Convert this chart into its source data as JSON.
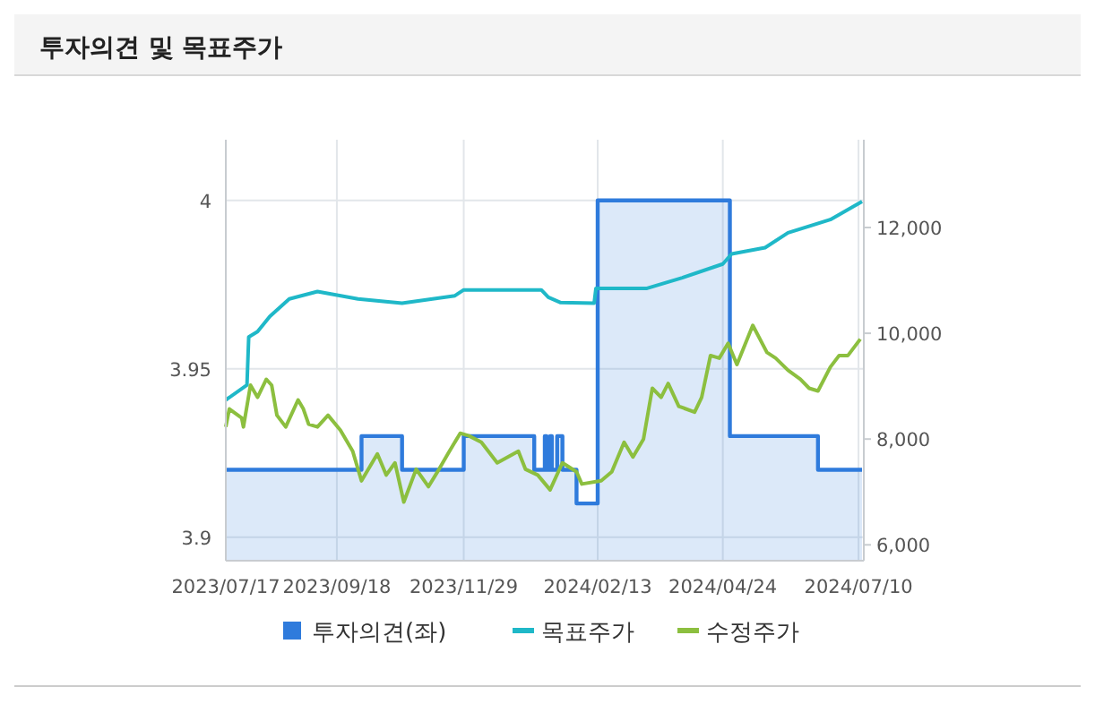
{
  "chart_data": {
    "type": "line",
    "title": "투자의견 및 목표주가",
    "xlim": [
      "2023-07-17",
      "2024-07-13"
    ],
    "xticks": [
      {
        "value": "2023-07-17",
        "label": "2023/07/17"
      },
      {
        "value": "2023-09-18",
        "label": "2023/09/18"
      },
      {
        "value": "2023-11-29",
        "label": "2023/11/29"
      },
      {
        "value": "2024-02-13",
        "label": "2024/02/13"
      },
      {
        "value": "2024-04-24",
        "label": "2024/04/24"
      },
      {
        "value": "2024-07-10",
        "label": "2024/07/10"
      }
    ],
    "ylim": [
      3.893,
      4.018
    ],
    "yticks": [
      3.9,
      3.95,
      4
    ],
    "y2lim": [
      5700,
      13660
    ],
    "y2ticks": [
      {
        "value": 6000,
        "label": "6,000"
      },
      {
        "value": 8000,
        "label": "8,000"
      },
      {
        "value": 10000,
        "label": "10,000"
      },
      {
        "value": 12000,
        "label": "12,000"
      }
    ],
    "grid": true,
    "legend": "bottom",
    "series": [
      {
        "name": "투자의견(좌)",
        "type": "area",
        "color": "#2f7bdc",
        "x": [
          "2023-07-17",
          "2023-10-02",
          "2023-10-02",
          "2023-10-25",
          "2023-10-25",
          "2023-11-29",
          "2023-11-29",
          "2024-01-08",
          "2024-01-08",
          "2024-01-14",
          "2024-01-14",
          "2024-01-15",
          "2024-01-15",
          "2024-01-17",
          "2024-01-17",
          "2024-01-18",
          "2024-01-18",
          "2024-01-21",
          "2024-01-21",
          "2024-01-24",
          "2024-01-24",
          "2024-02-01",
          "2024-02-01",
          "2024-02-13",
          "2024-02-13",
          "2024-04-28",
          "2024-04-28",
          "2024-06-17",
          "2024-06-17",
          "2024-07-12"
        ],
        "values": [
          3.92,
          3.92,
          3.93,
          3.93,
          3.92,
          3.92,
          3.93,
          3.93,
          3.92,
          3.92,
          3.93,
          3.93,
          3.92,
          3.92,
          3.93,
          3.93,
          3.92,
          3.92,
          3.93,
          3.93,
          3.92,
          3.92,
          3.91,
          3.91,
          4,
          4,
          3.93,
          3.93,
          3.92,
          3.92
        ]
      },
      {
        "name": "목표주가",
        "axis": "y2",
        "color": "#1fb8c8",
        "x": [
          "2023-07-17",
          "2023-07-29",
          "2023-07-30",
          "2023-08-04",
          "2023-08-11",
          "2023-08-22",
          "2023-09-07",
          "2023-09-30",
          "2023-10-25",
          "2023-11-24",
          "2023-11-29",
          "2023-12-31",
          "2024-01-12",
          "2024-01-16",
          "2024-01-23",
          "2024-02-11",
          "2024-02-12",
          "2024-03-12",
          "2024-04-01",
          "2024-04-24",
          "2024-04-29",
          "2024-05-18",
          "2024-05-31",
          "2024-06-24",
          "2024-07-12"
        ],
        "values": [
          8740,
          9020,
          9930,
          10030,
          10320,
          10650,
          10790,
          10650,
          10570,
          10710,
          10820,
          10820,
          10820,
          10680,
          10580,
          10570,
          10850,
          10850,
          11050,
          11310,
          11500,
          11620,
          11900,
          12150,
          12490
        ]
      },
      {
        "name": "수정주가",
        "axis": "y2",
        "color": "#8cbf3f",
        "x": [
          "2023-07-17",
          "2023-07-19",
          "2023-07-26",
          "2023-07-27",
          "2023-07-31",
          "2023-08-04",
          "2023-08-09",
          "2023-08-12",
          "2023-08-15",
          "2023-08-20",
          "2023-08-27",
          "2023-08-30",
          "2023-09-02",
          "2023-09-07",
          "2023-09-13",
          "2023-09-20",
          "2023-09-27",
          "2023-10-02",
          "2023-10-11",
          "2023-10-16",
          "2023-10-21",
          "2023-10-26",
          "2023-11-02",
          "2023-11-09",
          "2023-11-15",
          "2023-11-20",
          "2023-11-27",
          "2023-12-02",
          "2023-12-09",
          "2023-12-18",
          "2023-12-30",
          "2024-01-03",
          "2024-01-10",
          "2024-01-17",
          "2024-01-24",
          "2024-02-01",
          "2024-02-04",
          "2024-02-15",
          "2024-02-21",
          "2024-02-28",
          "2024-03-04",
          "2024-03-10",
          "2024-03-15",
          "2024-03-20",
          "2024-03-24",
          "2024-03-30",
          "2024-04-08",
          "2024-04-12",
          "2024-04-17",
          "2024-04-22",
          "2024-04-27",
          "2024-05-02",
          "2024-05-11",
          "2024-05-19",
          "2024-05-24",
          "2024-05-31",
          "2024-06-07",
          "2024-06-12",
          "2024-06-17",
          "2024-06-24",
          "2024-06-29",
          "2024-07-04",
          "2024-07-11"
        ],
        "values": [
          8230,
          8570,
          8400,
          8230,
          9020,
          8790,
          9130,
          9020,
          8450,
          8230,
          8740,
          8570,
          8280,
          8230,
          8450,
          8170,
          7770,
          7210,
          7720,
          7320,
          7550,
          6810,
          7430,
          7100,
          7430,
          7720,
          8110,
          8060,
          7940,
          7550,
          7770,
          7430,
          7320,
          7040,
          7550,
          7380,
          7150,
          7210,
          7380,
          7940,
          7660,
          8000,
          8960,
          8790,
          9050,
          8620,
          8510,
          8790,
          9580,
          9530,
          9810,
          9410,
          10150,
          9640,
          9530,
          9300,
          9130,
          8960,
          8910,
          9360,
          9580,
          9580,
          9890
        ]
      }
    ]
  }
}
